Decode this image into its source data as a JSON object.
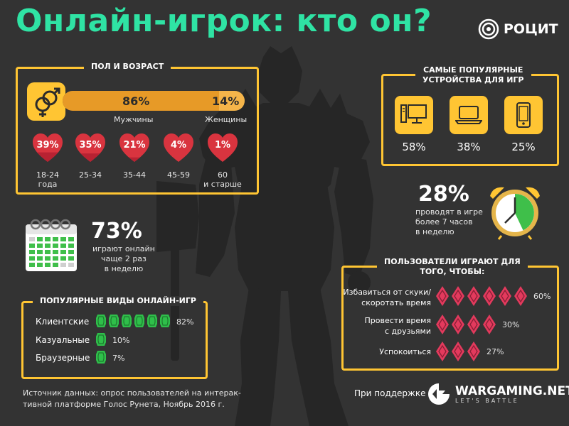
{
  "title": "Онлайн-игрок: кто он?",
  "logo": {
    "text": "РОЦИТ",
    "icon": "concentric-circles-icon"
  },
  "gender_age": {
    "section_title": "ПОЛ И ВОЗРАСТ",
    "male": {
      "percent": "86%",
      "label": "Мужчины",
      "share": 0.86
    },
    "female": {
      "percent": "14%",
      "label": "Женщины",
      "share": 0.14
    },
    "ages": [
      {
        "percent": "39%",
        "line1": "18-24",
        "line2": "года",
        "fill": 0.39
      },
      {
        "percent": "35%",
        "line1": "25-34",
        "line2": "",
        "fill": 0.35
      },
      {
        "percent": "21%",
        "line1": "35-44",
        "line2": "",
        "fill": 0.21
      },
      {
        "percent": "4%",
        "line1": "45-59",
        "line2": "",
        "fill": 0.04
      },
      {
        "percent": "1%",
        "line1": "60",
        "line2": "и старше",
        "fill": 0.01
      }
    ]
  },
  "devices": {
    "section_title_1": "САМЫЕ ПОПУЛЯРНЫЕ",
    "section_title_2": "УСТРОЙСТВА ДЛЯ ИГР",
    "items": [
      {
        "icon": "desktop-computer-icon",
        "percent": "58%"
      },
      {
        "icon": "laptop-icon",
        "percent": "38%"
      },
      {
        "icon": "smartphone-icon",
        "percent": "25%"
      }
    ]
  },
  "frequency": {
    "big": "73%",
    "line1": "играют онлайн",
    "line2": "чаще 2 раз",
    "line3": "в неделю",
    "icon": "calendar-icon"
  },
  "time": {
    "big": "28%",
    "line1": "проводят в игре",
    "line2": "более 7 часов",
    "line3": "в неделю",
    "icon": "alarm-clock-icon",
    "fill": 0.28
  },
  "game_types": {
    "section_title": "ПОПУЛЯРНЫЕ ВИДЫ ОНЛАЙН-ИГР",
    "items": [
      {
        "label": "Клиентские",
        "percent": "82%",
        "count": 6
      },
      {
        "label": "Казуальные",
        "percent": "10%",
        "count": 1
      },
      {
        "label": "Браузерные",
        "percent": "7%",
        "count": 1
      }
    ],
    "accent": "#2fbf4a"
  },
  "reasons": {
    "section_title_1": "ПОЛЬЗОВАТЕЛИ ИГРАЮТ ДЛЯ",
    "section_title_2": "ТОГО, ЧТОБЫ:",
    "items": [
      {
        "line1": "Избавиться от скуки/",
        "line2": "скоротать время",
        "percent": "60%",
        "count": 6
      },
      {
        "line1": "Провести время",
        "line2": "с друзьями",
        "percent": "30%",
        "count": 4
      },
      {
        "line1": "Успокоиться",
        "line2": "",
        "percent": "27%",
        "count": 3
      }
    ],
    "accent": "#e33a5d"
  },
  "source": {
    "line1": "Источник данных: опрос пользователей на интерак-",
    "line2": "тивной платформе Голос Рунета, Ноябрь 2016 г."
  },
  "support": {
    "label": "При поддержке",
    "brand": "WARGAMING.NET",
    "tagline": "LET'S BATTLE"
  },
  "colors": {
    "background": "#333333",
    "title": "#2fe3a4",
    "frame": "#ffc533",
    "heart": "#d9343f"
  }
}
